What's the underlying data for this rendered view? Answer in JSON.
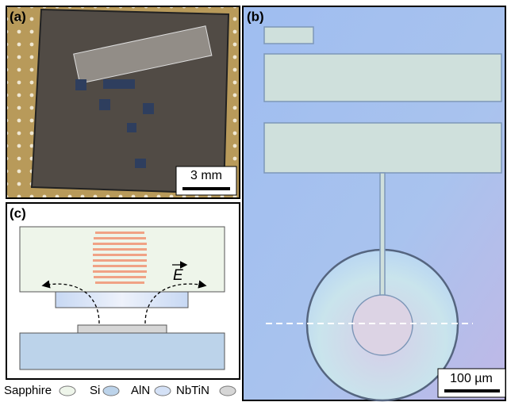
{
  "panels": [
    {
      "label": "(a)",
      "scale_bar": "3 mm"
    },
    {
      "label": "(b)",
      "scale_bar": "100 µm"
    },
    {
      "label": "(c)",
      "field_label": "E"
    }
  ],
  "legend": [
    "Sapphire",
    "Si",
    "AlN",
    "NbTiN"
  ]
}
